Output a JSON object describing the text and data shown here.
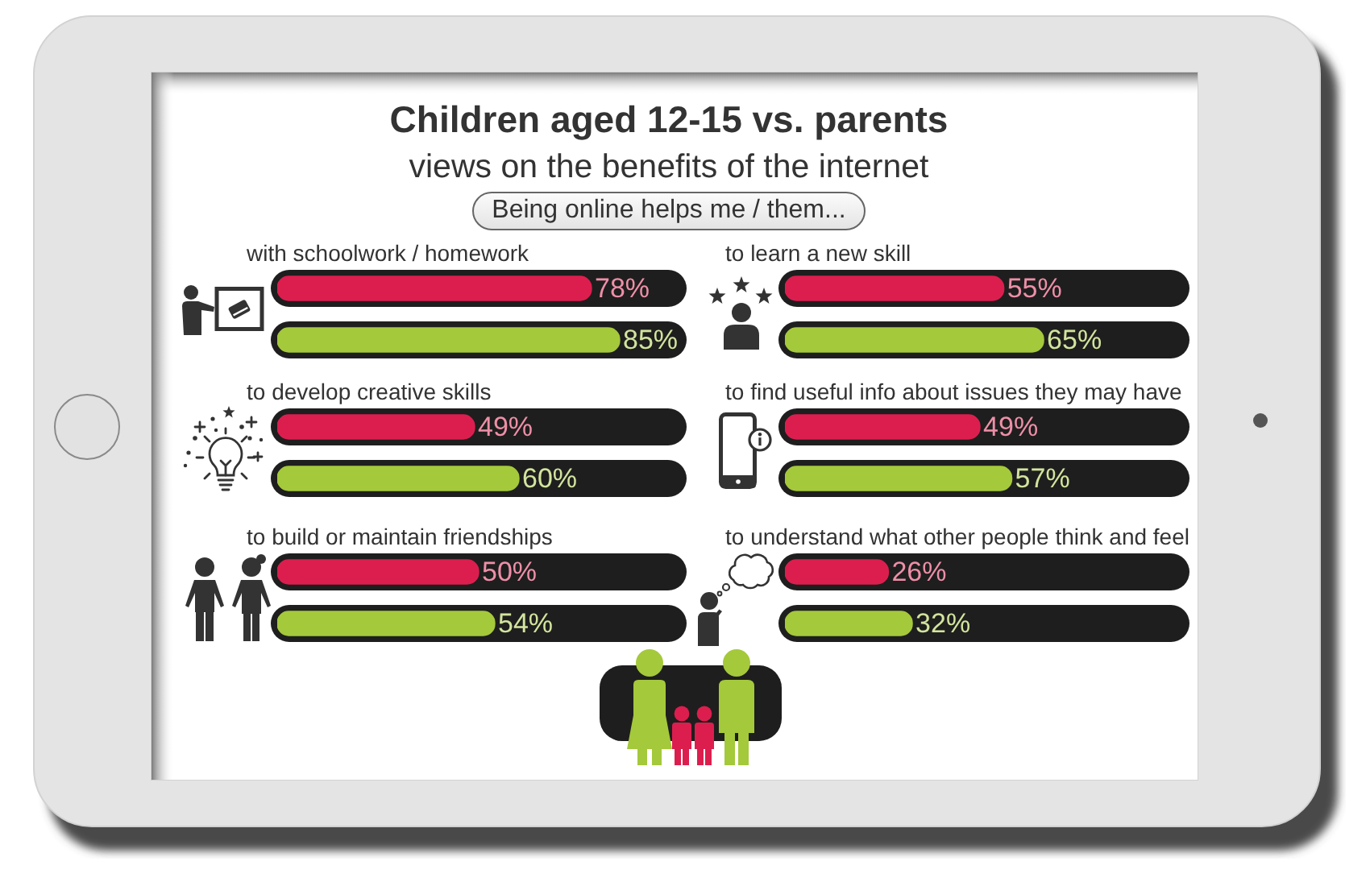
{
  "chart_data": [
    {
      "type": "other",
      "title": "Children aged 12-15 vs. parents",
      "subtitle": "views on the benefits of the internet",
      "annotations": [
        "Being online helps me / them..."
      ]
    },
    {
      "type": "bar",
      "orientation": "horizontal",
      "title": "with schoolwork / homework",
      "categories": [
        null,
        null
      ],
      "values": [
        78,
        85
      ],
      "colors": [
        "#dc1e4e",
        "#a4c93b"
      ],
      "value_labels": [
        "78%",
        "85%"
      ],
      "xlim": [
        0,
        100
      ],
      "tick_labels": false
    },
    {
      "type": "bar",
      "orientation": "horizontal",
      "title": "to learn a new skill",
      "categories": [
        null,
        null
      ],
      "values": [
        55,
        65
      ],
      "colors": [
        "#dc1e4e",
        "#a4c93b"
      ],
      "value_labels": [
        "55%",
        "65%"
      ],
      "xlim": [
        0,
        100
      ],
      "tick_labels": false
    },
    {
      "type": "bar",
      "orientation": "horizontal",
      "title": "to develop creative skills",
      "categories": [
        null,
        null
      ],
      "values": [
        49,
        60
      ],
      "colors": [
        "#dc1e4e",
        "#a4c93b"
      ],
      "value_labels": [
        "49%",
        "60%"
      ],
      "xlim": [
        0,
        100
      ],
      "tick_labels": false
    },
    {
      "type": "bar",
      "orientation": "horizontal",
      "title": "to find useful info about issues they may have",
      "categories": [
        null,
        null
      ],
      "values": [
        49,
        57
      ],
      "colors": [
        "#dc1e4e",
        "#a4c93b"
      ],
      "value_labels": [
        "49%",
        "57%"
      ],
      "xlim": [
        0,
        100
      ],
      "tick_labels": false
    },
    {
      "type": "bar",
      "orientation": "horizontal",
      "title": "to build or maintain friendships",
      "categories": [
        null,
        null
      ],
      "values": [
        50,
        54
      ],
      "colors": [
        "#dc1e4e",
        "#a4c93b"
      ],
      "value_labels": [
        "50%",
        "54%"
      ],
      "xlim": [
        0,
        100
      ],
      "tick_labels": false
    },
    {
      "type": "bar",
      "orientation": "horizontal",
      "title": "to understand what other people think and feel",
      "categories": [
        null,
        null
      ],
      "values": [
        26,
        32
      ],
      "colors": [
        "#dc1e4e",
        "#a4c93b"
      ],
      "value_labels": [
        "26%",
        "32%"
      ],
      "xlim": [
        0,
        100
      ],
      "tick_labels": false
    }
  ]
}
